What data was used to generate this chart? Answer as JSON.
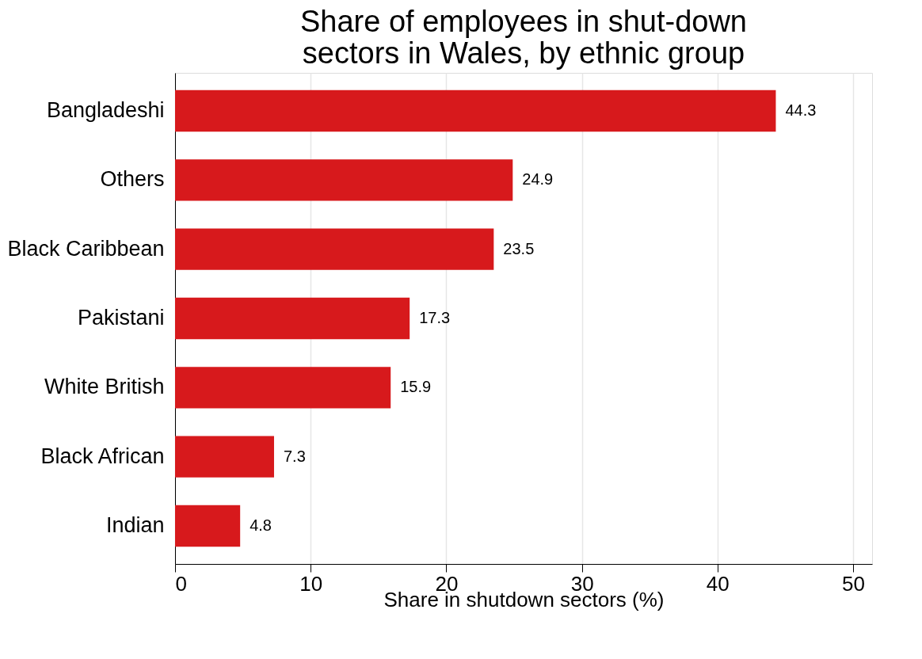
{
  "chart_data": {
    "type": "bar",
    "orientation": "horizontal",
    "title": "Share of employees in shut-down sectors in Wales, by ethnic group",
    "xlabel": "Share in shutdown sectors (%)",
    "categories": [
      "Bangladeshi",
      "Others",
      "Black Caribbean",
      "Pakistani",
      "White British",
      "Black African",
      "Indian"
    ],
    "values": [
      44.3,
      24.9,
      23.5,
      17.3,
      15.9,
      7.3,
      4.8
    ],
    "color": "#d7191c",
    "xlim": [
      0,
      51.4
    ],
    "xticks": [
      0,
      10,
      20,
      30,
      40,
      50
    ],
    "grid": "x",
    "data_labels": true
  }
}
